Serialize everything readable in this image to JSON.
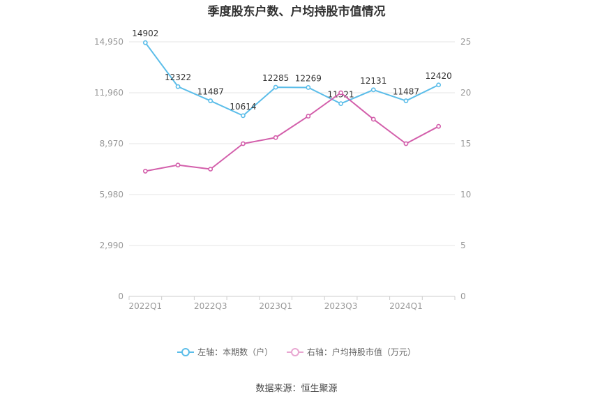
{
  "title": "季度股东户数、户均持股市值情况",
  "source": "数据来源：恒生聚源",
  "colors": {
    "left_series": "#5bbde9",
    "right_series": "#d35fab",
    "grid": "#e6e6e6",
    "axis_text": "#999999"
  },
  "chart_data": {
    "type": "line",
    "title": "季度股东户数、户均持股市值情况",
    "categories": [
      "2022Q1",
      "2022Q2",
      "2022Q3",
      "2022Q4",
      "2023Q1",
      "2023Q2",
      "2023Q3",
      "2023Q4",
      "2024Q1",
      "2024Q2"
    ],
    "x_tick_labels": [
      "2022Q1",
      "",
      "2022Q3",
      "",
      "2023Q1",
      "",
      "2023Q3",
      "",
      "2024Q1",
      ""
    ],
    "left_axis": {
      "ylim": [
        0,
        14950
      ],
      "ticks": [
        0,
        2990,
        5980,
        8970,
        11960,
        14950
      ],
      "tick_labels": [
        "0",
        "2,990",
        "5,980",
        "8,970",
        "11,960",
        "14,950"
      ]
    },
    "right_axis": {
      "ylim": [
        0,
        25
      ],
      "ticks": [
        0,
        5,
        10,
        15,
        20,
        25
      ],
      "tick_labels": [
        "0",
        "5",
        "10",
        "15",
        "20",
        "25"
      ]
    },
    "grid": true,
    "legend_position": "bottom",
    "series": [
      {
        "name": "左轴：本期数（户）",
        "axis": "left",
        "color": "#5bbde9",
        "values": [
          14902,
          12322,
          11487,
          10614,
          12285,
          12269,
          11321,
          12131,
          11487,
          12420
        ],
        "labels": [
          "14902",
          "12322",
          "11487",
          "10614",
          "12285",
          "12269",
          "11321",
          "12131",
          "11487",
          "12420"
        ]
      },
      {
        "name": "右轴：户均持股市值（万元）",
        "axis": "right",
        "color": "#d35fab",
        "values": [
          12.3,
          12.9,
          12.5,
          15.0,
          15.6,
          17.7,
          20.0,
          17.4,
          15.0,
          16.7
        ]
      }
    ]
  }
}
